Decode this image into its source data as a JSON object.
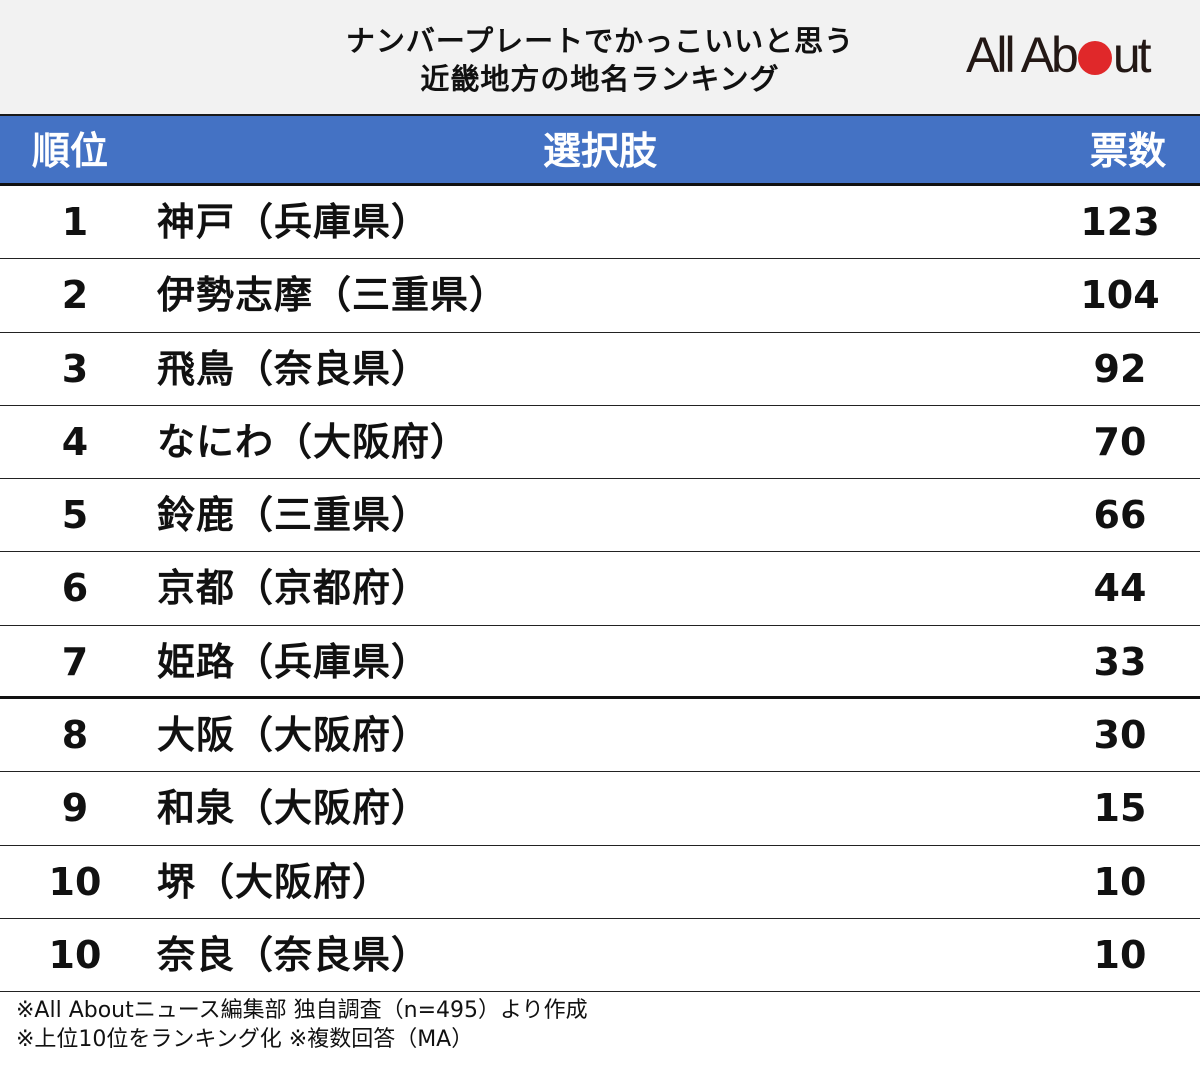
{
  "title": {
    "line1": "ナンバープレートでかっこいいと思う",
    "line2": "近畿地方の地名ランキング"
  },
  "logo": {
    "pre": "All Ab",
    "post": "ut",
    "dot_color": "#e0282a"
  },
  "header": {
    "rank": "順位",
    "choice": "選択肢",
    "votes": "票数",
    "bg_color": "#4472c4"
  },
  "rows": [
    {
      "rank": "1",
      "name": "神戸（兵庫県）",
      "votes": "123"
    },
    {
      "rank": "2",
      "name": "伊勢志摩（三重県）",
      "votes": "104"
    },
    {
      "rank": "3",
      "name": "飛鳥（奈良県）",
      "votes": "92"
    },
    {
      "rank": "4",
      "name": "なにわ（大阪府）",
      "votes": "70"
    },
    {
      "rank": "5",
      "name": "鈴鹿（三重県）",
      "votes": "66"
    },
    {
      "rank": "6",
      "name": "京都（京都府）",
      "votes": "44"
    },
    {
      "rank": "7",
      "name": "姫路（兵庫県）",
      "votes": "33"
    },
    {
      "rank": "8",
      "name": "大阪（大阪府）",
      "votes": "30"
    },
    {
      "rank": "9",
      "name": "和泉（大阪府）",
      "votes": "15"
    },
    {
      "rank": "10",
      "name": "堺（大阪府）",
      "votes": "10"
    },
    {
      "rank": "10",
      "name": "奈良（奈良県）",
      "votes": "10"
    }
  ],
  "footer": {
    "line1": "※All Aboutニュース編集部 独自調査（n=495）より作成",
    "line2": "※上位10位をランキング化 ※複数回答（MA）"
  },
  "chart_data": {
    "type": "table",
    "title": "ナンバープレートでかっこいいと思う近畿地方の地名ランキング",
    "columns": [
      "順位",
      "選択肢",
      "票数"
    ],
    "categories": [
      "神戸（兵庫県）",
      "伊勢志摩（三重県）",
      "飛鳥（奈良県）",
      "なにわ（大阪府）",
      "鈴鹿（三重県）",
      "京都（京都府）",
      "姫路（兵庫県）",
      "大阪（大阪府）",
      "和泉（大阪府）",
      "堺（大阪府）",
      "奈良（奈良県）"
    ],
    "ranks": [
      1,
      2,
      3,
      4,
      5,
      6,
      7,
      8,
      9,
      10,
      10
    ],
    "values": [
      123,
      104,
      92,
      70,
      66,
      44,
      33,
      30,
      15,
      10,
      10
    ],
    "notes": [
      "※All Aboutニュース編集部 独自調査（n=495）より作成",
      "※上位10位をランキング化 ※複数回答（MA）"
    ]
  }
}
